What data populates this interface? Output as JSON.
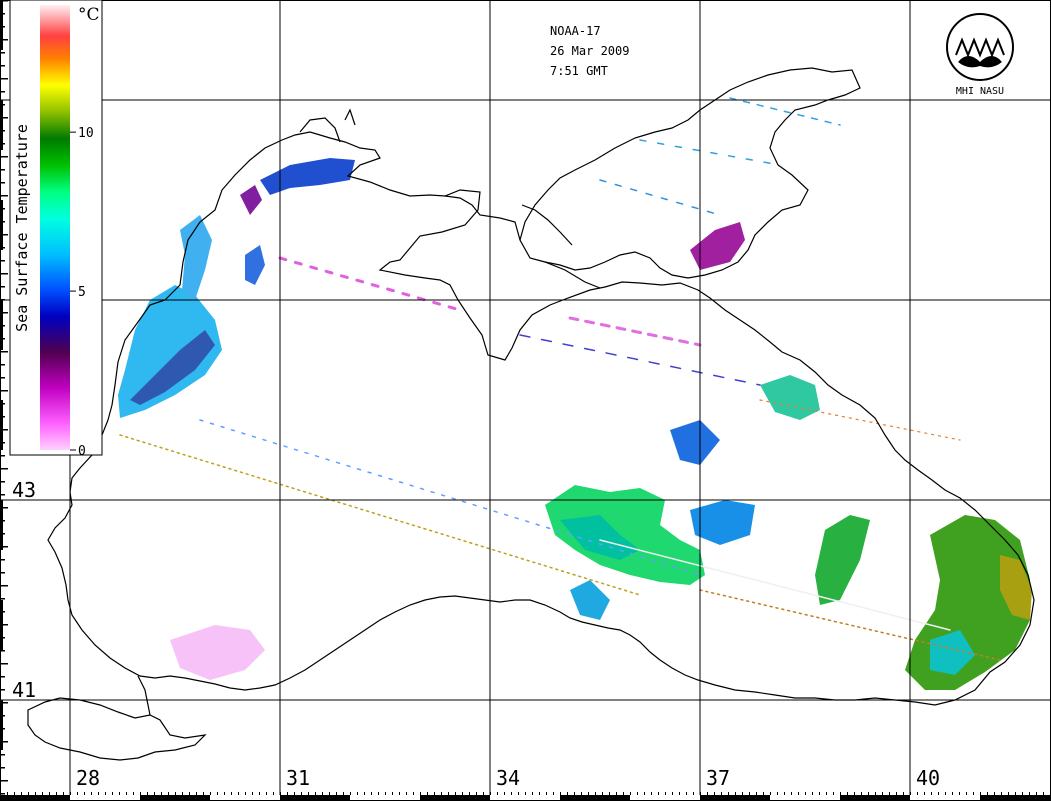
{
  "header": {
    "satellite": "NOAA-17",
    "date": "26 Mar 2009",
    "time": "7:51 GMT"
  },
  "logo": {
    "text": "MHI NASU"
  },
  "legend": {
    "title": "Sea Surface Temperature",
    "unit": "°C",
    "ticks": [
      "10",
      "5",
      "0"
    ],
    "tick_values": [
      10,
      5,
      0
    ],
    "range": [
      0,
      14
    ],
    "colors": [
      "#ffd0ff",
      "#ff40ff",
      "#a000a0",
      "#200040",
      "#0000ff",
      "#00a0ff",
      "#00ffff",
      "#00ff80",
      "#00c000",
      "#008000",
      "#80c000",
      "#ffff00",
      "#ff8000",
      "#ff4040",
      "#ffc0c0",
      "#ffffff"
    ]
  },
  "axes": {
    "longitude_labels": [
      "28",
      "31",
      "34",
      "37",
      "40"
    ],
    "latitude_labels": [
      "43",
      "41"
    ]
  },
  "map": {
    "land_color": "#ffffff",
    "coast_color": "#000000",
    "grid_color": "#000000"
  }
}
